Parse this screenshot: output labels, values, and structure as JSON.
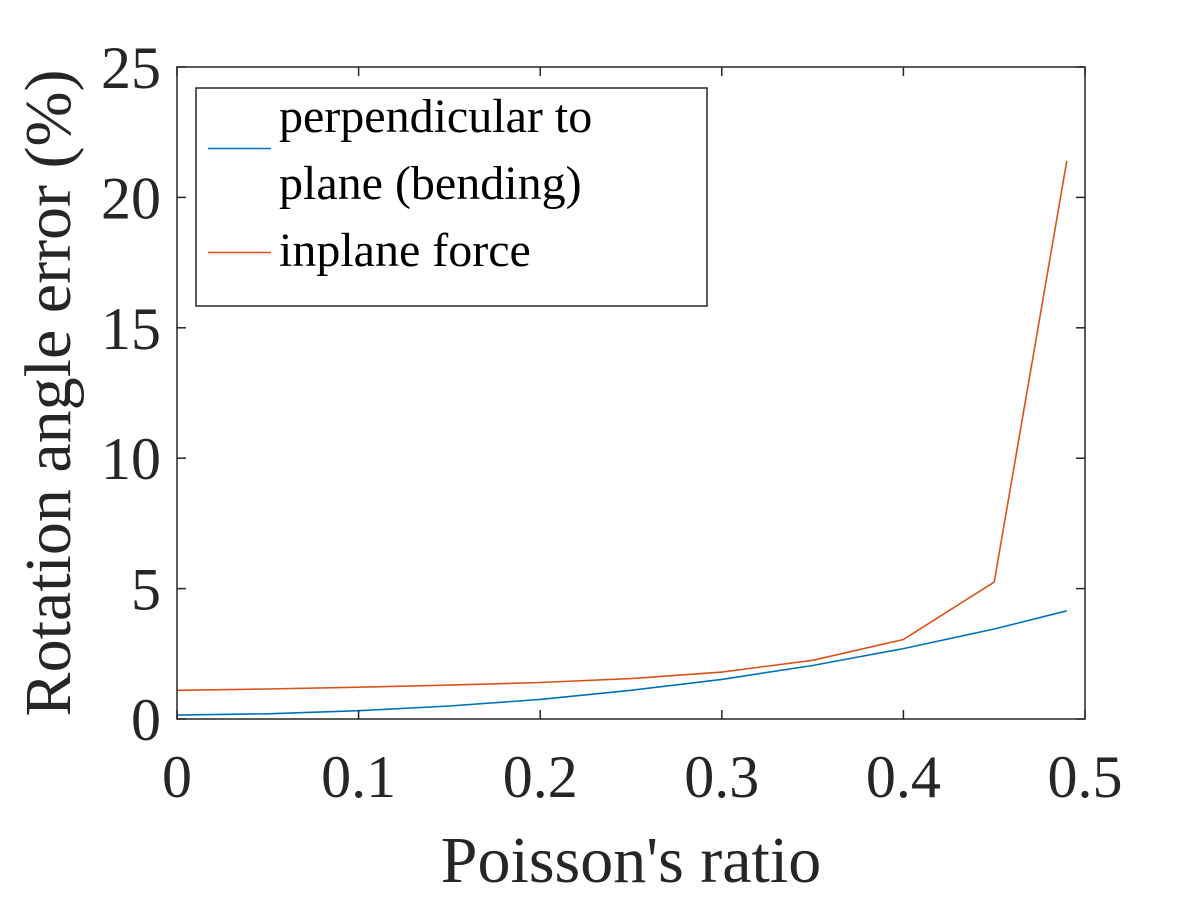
{
  "chart_data": {
    "type": "line",
    "title": "",
    "xlabel": "Poisson's ratio",
    "ylabel": "Rotation angle error (%)",
    "xlim": [
      0,
      0.5
    ],
    "ylim": [
      0,
      25
    ],
    "x_ticks": [
      0,
      0.1,
      0.2,
      0.3,
      0.4,
      0.5
    ],
    "x_tick_labels": [
      "0",
      "0.1",
      "0.2",
      "0.3",
      "0.4",
      "0.5"
    ],
    "y_ticks": [
      0,
      5,
      10,
      15,
      20,
      25
    ],
    "y_tick_labels": [
      "0",
      "5",
      "10",
      "15",
      "20",
      "25"
    ],
    "grid": false,
    "legend_position": "top-left",
    "x": [
      0,
      0.05,
      0.1,
      0.15,
      0.2,
      0.25,
      0.3,
      0.35,
      0.4,
      0.45,
      0.49
    ],
    "series": [
      {
        "name": "perpendicular to plane (bending)",
        "legend_lines": [
          "perpendicular to",
          "plane (bending)"
        ],
        "color": "#0072BD",
        "values": [
          0.15,
          0.2,
          0.32,
          0.5,
          0.75,
          1.1,
          1.52,
          2.05,
          2.7,
          3.45,
          4.15
        ]
      },
      {
        "name": "inplane force",
        "legend_lines": [
          "inplane force"
        ],
        "color": "#D95319",
        "values": [
          1.1,
          1.15,
          1.22,
          1.3,
          1.4,
          1.55,
          1.8,
          2.25,
          3.05,
          5.25,
          21.4
        ]
      }
    ]
  }
}
